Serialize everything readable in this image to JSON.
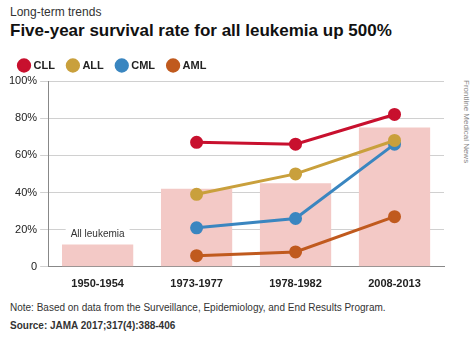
{
  "chart_data": {
    "type": "bar",
    "subtitle": "Long-term trends",
    "title": "Five-year survival rate for all leukemia up 500%",
    "note": "Note: Based on data from the Surveillance, Epidemiology, and End Results Program.",
    "source": "Source: JAMA 2017;317(4):388-406",
    "credit": "Frontline Medical News",
    "categories": [
      "1950-1954",
      "1973-1977",
      "1978-1982",
      "2008-2013"
    ],
    "series": [
      {
        "name": "All leukemia",
        "type": "bar",
        "color": "#f3c9c6",
        "values": [
          12,
          42,
          45,
          75
        ]
      },
      {
        "name": "CLL",
        "type": "line",
        "color": "#c8102e",
        "marker": "circle",
        "values": [
          null,
          67,
          66,
          82
        ]
      },
      {
        "name": "ALL",
        "type": "line",
        "color": "#c9a03c",
        "marker": "circle",
        "values": [
          null,
          39,
          50,
          68
        ]
      },
      {
        "name": "CML",
        "type": "line",
        "color": "#3a86c0",
        "marker": "circle",
        "values": [
          null,
          21,
          26,
          66
        ]
      },
      {
        "name": "AML",
        "type": "line",
        "color": "#c05a1e",
        "marker": "circle",
        "values": [
          null,
          6,
          8,
          27
        ]
      }
    ],
    "ylim": [
      0,
      100
    ],
    "yticks": [
      0,
      {
        "value": 20,
        "label": "20%"
      },
      {
        "value": 40,
        "label": "40%"
      },
      {
        "value": 60,
        "label": "60%"
      },
      {
        "value": 80,
        "label": "80%"
      },
      {
        "value": 100,
        "label": "100%"
      }
    ],
    "grid": true,
    "legend": "top"
  }
}
